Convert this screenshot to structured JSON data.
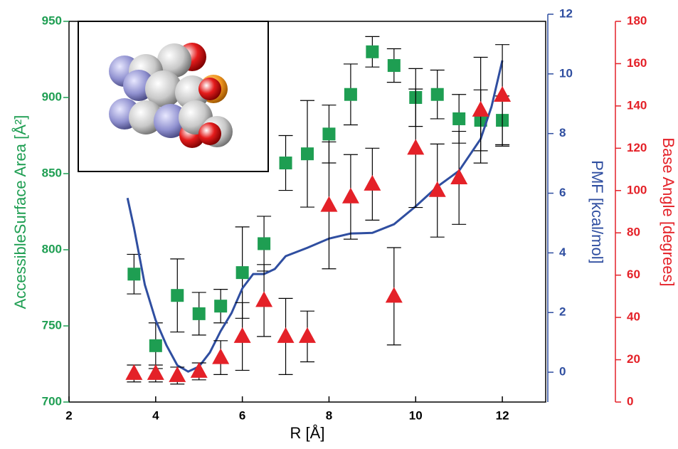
{
  "chart_data": {
    "type": "scatter-line",
    "xlabel": "R [Å]",
    "ylabel": "AccessibleSurface Area [Å²]",
    "y2label": "PMF [kcal/mol]",
    "y3label": "Base Angle [degrees]",
    "xlim": [
      2,
      13
    ],
    "xticks": [
      2,
      4,
      6,
      8,
      10,
      12
    ],
    "ylim": [
      700,
      950
    ],
    "yticks": [
      700,
      750,
      800,
      850,
      900,
      950
    ],
    "y2lim": [
      -1,
      12
    ],
    "y2ticks": [
      0,
      2,
      4,
      6,
      8,
      10,
      12
    ],
    "y3lim": [
      0,
      180
    ],
    "y3ticks": [
      0,
      20,
      40,
      60,
      80,
      100,
      120,
      140,
      160,
      180
    ],
    "colors": {
      "y": "#1e9e52",
      "y2": "#2f4ea0",
      "y3": "#e42128"
    },
    "series": [
      {
        "axis": "y",
        "marker": "square",
        "color": "#1e9e52",
        "x": [
          3.5,
          4,
          4.5,
          5,
          5.5,
          6,
          6.5,
          7,
          7.5,
          8,
          8.5,
          9,
          9.5,
          10,
          10.5,
          11,
          11.5,
          12
        ],
        "values": [
          784,
          737,
          770,
          758,
          763,
          785,
          804,
          857,
          863,
          876,
          902,
          930,
          921,
          900,
          902,
          886,
          885,
          885
        ],
        "errors": [
          13,
          15,
          24,
          14,
          11,
          30,
          18,
          18,
          35,
          19,
          20,
          10,
          11,
          19,
          16,
          16,
          20,
          16
        ]
      },
      {
        "axis": "y2",
        "marker": "line",
        "color": "#2f4ea0",
        "x": [
          3.35,
          3.5,
          3.75,
          4,
          4.25,
          4.5,
          4.75,
          5,
          5.25,
          5.5,
          5.75,
          6,
          6.25,
          6.5,
          6.75,
          7,
          7.5,
          8,
          8.5,
          9,
          9.5,
          10,
          10.5,
          11,
          11.5,
          11.75,
          12
        ],
        "values": [
          5.84,
          4.84,
          2.93,
          1.74,
          0.9,
          0.23,
          0.02,
          0.19,
          0.66,
          1.38,
          1.98,
          2.81,
          3.29,
          3.29,
          3.46,
          3.89,
          4.17,
          4.48,
          4.65,
          4.67,
          4.96,
          5.56,
          6.22,
          6.75,
          7.82,
          8.9,
          10.45
        ]
      },
      {
        "axis": "y3",
        "marker": "triangle",
        "color": "#e42128",
        "x": [
          3.5,
          4,
          4.5,
          5,
          5.5,
          6,
          6.5,
          7,
          7.5,
          8,
          8.5,
          9,
          9.5,
          10,
          10.5,
          11,
          11.5,
          12
        ],
        "values": [
          13.5,
          13.5,
          12.5,
          14.5,
          21,
          31,
          48,
          31,
          31,
          93,
          97,
          103,
          50,
          120,
          100,
          106,
          138,
          145
        ],
        "errors": [
          4,
          4,
          4,
          4,
          8,
          16,
          17,
          18,
          12,
          30,
          20,
          17,
          23,
          28,
          22,
          22,
          25,
          24
        ]
      }
    ]
  }
}
